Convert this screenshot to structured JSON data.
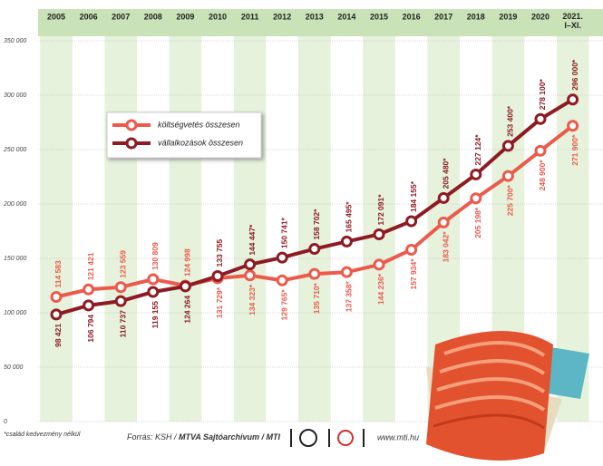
{
  "chart_data": {
    "type": "line",
    "categories": [
      "2005",
      "2006",
      "2007",
      "2008",
      "2009",
      "2010",
      "2011",
      "2012",
      "2013",
      "2014",
      "2015",
      "2016",
      "2017",
      "2018",
      "2019",
      "2020",
      "2021. I–XI."
    ],
    "series": [
      {
        "name": "költségvetés összesen",
        "color": "#ec5a4c",
        "values": [
          114583,
          121421,
          123559,
          130809,
          124998,
          131729,
          134323,
          129765,
          135710,
          137358,
          144236,
          157934,
          183042,
          205198,
          225700,
          248900,
          271900
        ],
        "value_labels": [
          "114 583",
          "121 421",
          "123 559",
          "130 809",
          "124 998",
          "131 729*",
          "134 323*",
          "129 765*",
          "135 710*",
          "137 358*",
          "144 236*",
          "157 934*",
          "183 042*",
          "205 198*",
          "225 700*",
          "248 900*",
          "271 900*"
        ]
      },
      {
        "name": "vállalkozások összesen",
        "color": "#8e1b22",
        "values": [
          98421,
          106794,
          110737,
          119155,
          124264,
          133755,
          144447,
          150741,
          158702,
          165495,
          172091,
          184155,
          205480,
          227124,
          253400,
          278100,
          296000
        ],
        "value_labels": [
          "98 421",
          "106 794",
          "110 737",
          "119 155",
          "124 264",
          "133 755",
          "144 447*",
          "150 741*",
          "158 702*",
          "165 495*",
          "172 091*",
          "184 155*",
          "205 480*",
          "227 124*",
          "253 400*",
          "278 100*",
          "296 000*"
        ]
      }
    ],
    "ylim": [
      0,
      350000
    ],
    "yticks": [
      0,
      {
        "value": 50000,
        "label": "50 000"
      },
      {
        "value": 100000,
        "label": "100 000"
      },
      {
        "value": 150000,
        "label": "150 000"
      },
      {
        "value": 200000,
        "label": "200 000"
      },
      {
        "value": 250000,
        "label": "250 000"
      },
      {
        "value": 300000,
        "label": "300 000"
      },
      {
        "value": 350000,
        "label": "350 000"
      }
    ],
    "grid": true,
    "legend": "upper left",
    "footnote": "*család kedvezmény nélkül",
    "source": {
      "prefix": "Forrás: KSH / ",
      "bold": "MTVA Sajtóarchívum / MTI"
    },
    "website": "www.mti.hu"
  }
}
